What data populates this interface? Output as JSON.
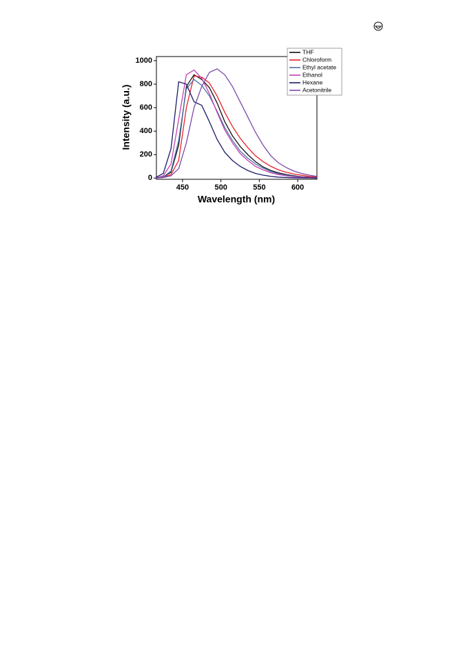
{
  "chart_data": {
    "type": "line",
    "x_label": "Wavelength (nm)",
    "y_label": "Intensity (a.u.)",
    "x": [
      415,
      425,
      435,
      445,
      455,
      465,
      475,
      485,
      495,
      505,
      515,
      525,
      535,
      545,
      555,
      565,
      575,
      585,
      595,
      605,
      615,
      625
    ],
    "series": [
      {
        "name": "THF",
        "color": "#111111",
        "values": [
          0,
          10,
          50,
          280,
          780,
          880,
          840,
          770,
          640,
          480,
          360,
          270,
          200,
          140,
          95,
          65,
          45,
          30,
          20,
          12,
          8,
          5
        ]
      },
      {
        "name": "Chloroform",
        "color": "#e8202a",
        "values": [
          0,
          8,
          30,
          150,
          600,
          870,
          860,
          810,
          700,
          560,
          440,
          340,
          260,
          190,
          140,
          100,
          70,
          50,
          35,
          25,
          15,
          10
        ]
      },
      {
        "name": "Ethyl acetate",
        "color": "#4a6fa8",
        "values": [
          0,
          10,
          60,
          320,
          760,
          840,
          790,
          700,
          570,
          430,
          320,
          230,
          170,
          120,
          85,
          55,
          38,
          25,
          16,
          10,
          6,
          4
        ]
      },
      {
        "name": "Ethanol",
        "color": "#c040b0",
        "values": [
          0,
          20,
          120,
          500,
          880,
          920,
          850,
          720,
          560,
          410,
          300,
          210,
          150,
          100,
          70,
          45,
          30,
          20,
          12,
          8,
          5,
          3
        ]
      },
      {
        "name": "Hexane",
        "color": "#1a1a6a",
        "values": [
          5,
          40,
          250,
          820,
          800,
          650,
          620,
          480,
          330,
          220,
          150,
          100,
          65,
          40,
          25,
          15,
          8,
          5,
          3,
          2,
          1,
          0
        ]
      },
      {
        "name": "Acetonitrile",
        "color": "#7a4aa8",
        "values": [
          0,
          5,
          20,
          80,
          300,
          600,
          780,
          900,
          930,
          880,
          780,
          650,
          520,
          390,
          280,
          190,
          130,
          90,
          60,
          40,
          25,
          15
        ]
      }
    ],
    "xlim": [
      416,
      625
    ],
    "xticks": [
      450,
      500,
      550,
      600
    ],
    "ylim": [
      -10,
      1035
    ],
    "yticks": [
      0,
      200,
      400,
      600,
      800,
      1000
    ],
    "legend": "top-right"
  }
}
